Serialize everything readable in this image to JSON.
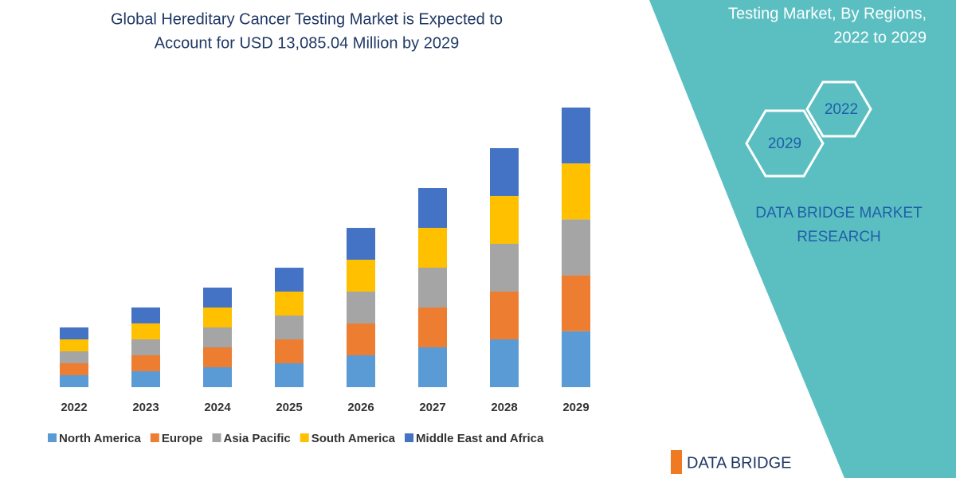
{
  "chart_data": {
    "type": "stacked-bar",
    "title": [
      "Global Hereditary Cancer Testing Market is Expected to",
      "Account for USD 13,085.04 Million by 2029"
    ],
    "categories": [
      "2022",
      "2023",
      "2024",
      "2025",
      "2026",
      "2027",
      "2028",
      "2029"
    ],
    "series": [
      {
        "name": "North America",
        "color": "#5b9bd5",
        "values": [
          559,
          746,
          932,
          1118,
          1491,
          1864,
          2237,
          2617
        ]
      },
      {
        "name": "Europe",
        "color": "#ed7d31",
        "values": [
          559,
          746,
          932,
          1118,
          1491,
          1864,
          2237,
          2617
        ]
      },
      {
        "name": "Asia Pacific",
        "color": "#a5a5a5",
        "values": [
          559,
          746,
          932,
          1118,
          1491,
          1864,
          2237,
          2617
        ]
      },
      {
        "name": "South America",
        "color": "#ffc000",
        "values": [
          559,
          746,
          932,
          1118,
          1491,
          1864,
          2237,
          2617
        ]
      },
      {
        "name": "Middle East and Africa",
        "color": "#4472c4",
        "values": [
          559,
          746,
          932,
          1118,
          1491,
          1864,
          2237,
          2617
        ]
      }
    ],
    "legend": "bottom"
  },
  "side_panel": {
    "title": [
      "Testing Market, By Regions,",
      "2022 to 2029"
    ],
    "hexagons": [
      "2022",
      "2029"
    ],
    "brand": [
      "DATA BRIDGE MARKET",
      "RESEARCH"
    ],
    "logo": "DATA BRIDGE"
  }
}
